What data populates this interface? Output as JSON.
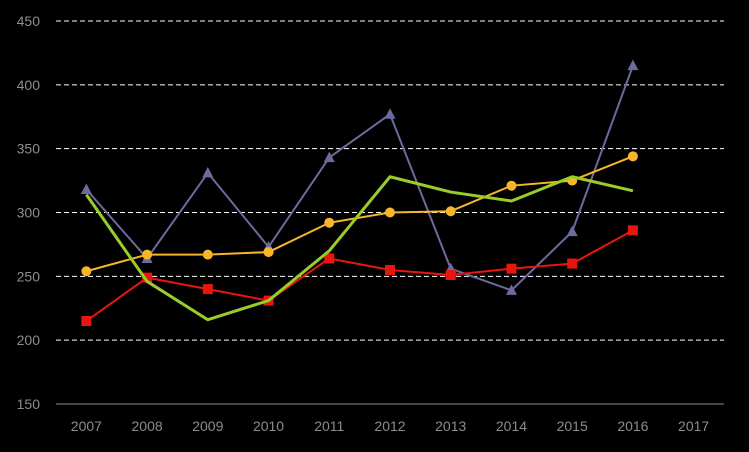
{
  "chart_data": {
    "type": "line",
    "x": [
      "2007",
      "2008",
      "2009",
      "2010",
      "2011",
      "2012",
      "2013",
      "2014",
      "2015",
      "2016",
      "2017"
    ],
    "ylim": [
      150,
      450
    ],
    "yticks": [
      150,
      200,
      250,
      300,
      350,
      400,
      450
    ],
    "grid": true,
    "legend": "none",
    "series": [
      {
        "color": "#6b6b9e",
        "marker": "triangle",
        "stroke_width": 2,
        "values": [
          318,
          264,
          331,
          273,
          343,
          377,
          256,
          239,
          285,
          415,
          null
        ]
      },
      {
        "color": "#e8160e",
        "marker": "square",
        "stroke_width": 2,
        "values": [
          215,
          249,
          240,
          231,
          264,
          255,
          251,
          256,
          260,
          286,
          null
        ]
      },
      {
        "color": "#f7b52a",
        "marker": "circle",
        "stroke_width": 2,
        "values": [
          254,
          267,
          267,
          269,
          292,
          300,
          301,
          321,
          325,
          344,
          null
        ]
      },
      {
        "color": "#9acd28",
        "marker": "none",
        "stroke_width": 3,
        "values": [
          314,
          246,
          216,
          231,
          270,
          328,
          316,
          309,
          328,
          317,
          null
        ]
      }
    ]
  }
}
